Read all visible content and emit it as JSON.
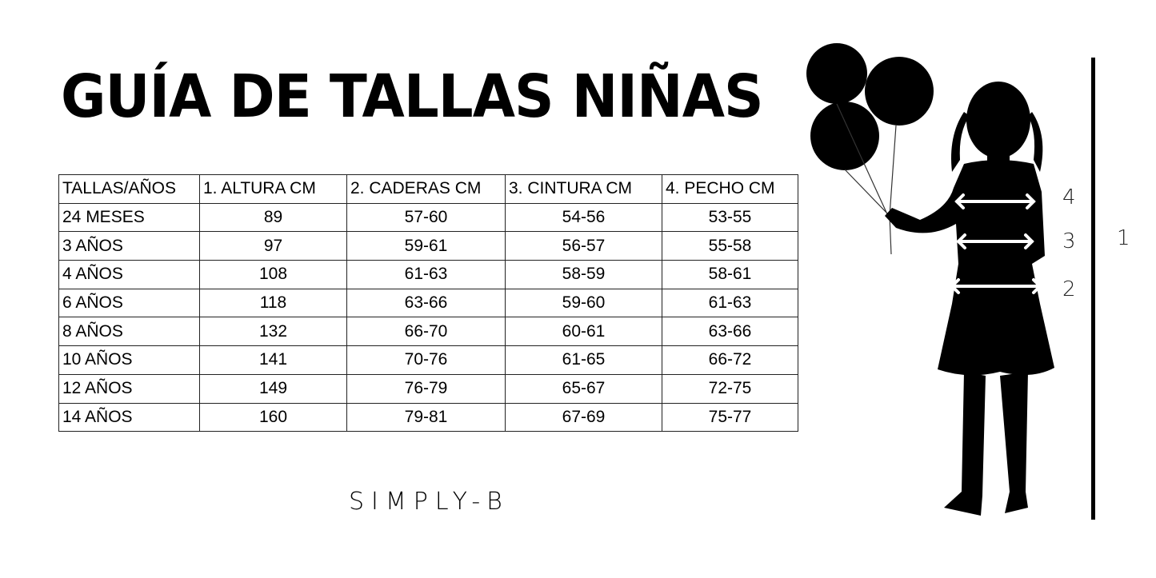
{
  "title": "GUÍA DE TALLAS NIÑAS",
  "table": {
    "headers": [
      "TALLAS/AÑOS",
      "1. ALTURA CM",
      "2. CADERAS CM",
      "3. CINTURA CM",
      "4. PECHO CM"
    ],
    "rows": [
      [
        "24 MESES",
        "89",
        "57-60",
        "54-56",
        "53-55"
      ],
      [
        "3 AÑOS",
        "97",
        "59-61",
        "56-57",
        "55-58"
      ],
      [
        "4 AÑOS",
        "108",
        "61-63",
        "58-59",
        "58-61"
      ],
      [
        "6 AÑOS",
        "118",
        "63-66",
        "59-60",
        "61-63"
      ],
      [
        "8 AÑOS",
        "132",
        "66-70",
        "60-61",
        "63-66"
      ],
      [
        "10 AÑOS",
        "141",
        "70-76",
        "61-65",
        "66-72"
      ],
      [
        "12 AÑOS",
        "149",
        "76-79",
        "65-67",
        "72-75"
      ],
      [
        "14 AÑOS",
        "160",
        "79-81",
        "67-69",
        "75-77"
      ]
    ]
  },
  "brand": "SIMPLY-B",
  "measure_labels": {
    "chest": "4",
    "waist": "3",
    "hips": "2",
    "height": "1"
  }
}
